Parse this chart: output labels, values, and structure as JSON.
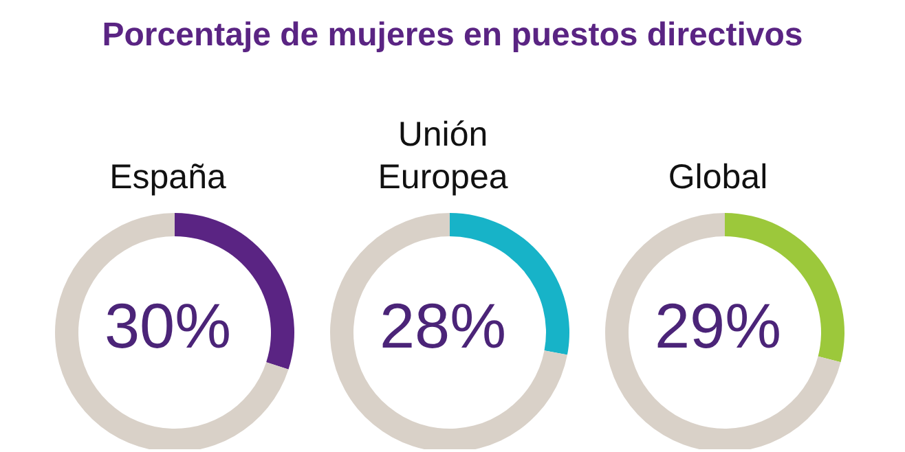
{
  "chart_data": [
    {
      "type": "donut",
      "title": "Porcentaje de mujeres en puestos directivos",
      "subtitle": "España",
      "categories": [
        null,
        null
      ],
      "values": [
        30,
        70
      ],
      "colors": [
        "#5a2483",
        "#d9d1c8"
      ],
      "annotations": [
        "30%"
      ]
    },
    {
      "type": "donut",
      "subtitle": "Unión\nEuropea",
      "categories": [
        null,
        null
      ],
      "values": [
        28,
        72
      ],
      "colors": [
        "#17b3c8",
        "#d9d1c8"
      ],
      "annotations": [
        "28%"
      ]
    },
    {
      "type": "donut",
      "subtitle": "Global",
      "categories": [
        null,
        null
      ],
      "values": [
        29,
        71
      ],
      "colors": [
        "#9cc83b",
        "#d9d1c8"
      ],
      "annotations": [
        "29%"
      ]
    }
  ]
}
